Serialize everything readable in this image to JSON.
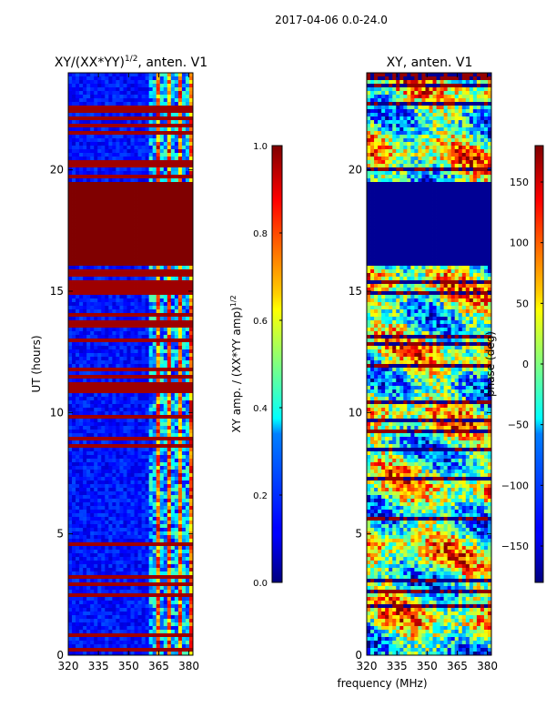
{
  "figure": {
    "suptitle": "2017-04-06 0.0-24.0",
    "shared_xlabel": "frequency (MHz)"
  },
  "colors": {
    "jet_low": "#00007f",
    "jet_blue": "#0000ff",
    "jet_cyan": "#00ffff",
    "jet_yellow": "#ffff00",
    "jet_red": "#ff0000",
    "jet_high": "#7f0000"
  },
  "chart_data": [
    {
      "type": "heatmap",
      "title_main": "XY/(XX*YY)",
      "title_exp": "1/2",
      "title_suffix": ", anten. V1",
      "xlabel": "frequency (MHz)",
      "ylabel": "UT (hours)",
      "xlim": [
        320,
        382
      ],
      "ylim": [
        0,
        24
      ],
      "xticks": [
        320,
        335,
        350,
        365,
        380
      ],
      "yticks": [
        0,
        5,
        10,
        15,
        20
      ],
      "colormap": "jet",
      "colorbar": {
        "label_main": "XY amp. / (XX*YY amp)",
        "label_exp": "1/2",
        "range": [
          0.0,
          1.0
        ],
        "ticks": [
          0.0,
          0.2,
          0.4,
          0.6,
          0.8,
          1.0
        ],
        "tick_labels": [
          "0.0",
          "0.2",
          "0.4",
          "0.6",
          "0.8",
          "1.0"
        ]
      },
      "description_of_values": {
        "background_level": 0.15,
        "flagged_band_hours": [
          16.0,
          19.5
        ],
        "flagged_band_value": 1.0,
        "active_freq_range_mhz": [
          360,
          382
        ]
      }
    },
    {
      "type": "heatmap",
      "title": "XY, anten. V1",
      "xlabel": "frequency (MHz)",
      "ylabel": "",
      "xlim": [
        320,
        382
      ],
      "ylim": [
        0,
        24
      ],
      "xticks": [
        320,
        335,
        350,
        365,
        380
      ],
      "yticks": [
        0,
        5,
        10,
        15,
        20
      ],
      "colormap": "jet",
      "colorbar": {
        "label": "phase (deg)",
        "range": [
          -180,
          180
        ],
        "ticks": [
          -150,
          -100,
          -50,
          0,
          50,
          100,
          150
        ],
        "tick_labels": [
          "−150",
          "−100",
          "−50",
          "0",
          "50",
          "100",
          "150"
        ]
      },
      "description_of_values": {
        "flagged_band_hours": [
          16.0,
          19.5
        ],
        "flagged_band_value": -180
      }
    }
  ]
}
